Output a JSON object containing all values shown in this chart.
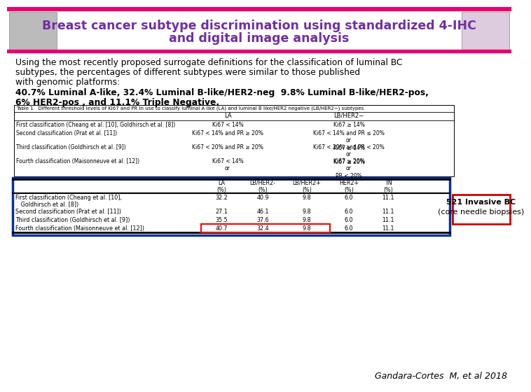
{
  "title_line1": "Breast cancer subtype discrimination using standardized 4-IHC",
  "title_line2": "and digital image analysis",
  "title_color": "#7030A0",
  "header_bar_color": "#E8006C",
  "body_text_lines": [
    "Using the most recently proposed surrogate definitions for the classification of luminal BC",
    "subtypes, the percentages of different subtypes were similar to those published",
    "with genomic platforms:"
  ],
  "bold_text1": "40.7% Luminal A-like, 32.4% Luminal B-like/HER2-neg  9.8% Luminal B-like/HER2-pos,",
  "bold_text2": "6% HER2-pos , and 11.1% Triple Negative.",
  "table1_title": "Table 1   Different threshold levels of Ki67 and PR in use to classify luminal A like (LA) and luminal B like/HER2 negative (LB/HER2−) subtypes",
  "table1_rows": [
    [
      "First classification (Cheang et al. [10], Goldhirsch et al. [8])",
      "Ki67 < 14%",
      "Ki67 ≥ 14%"
    ],
    [
      "Second classification (Prat et al. [11])",
      "Ki67 < 14% and PR ≥ 20%",
      "Ki67 < 14% and PR ≤ 20%\nor\nKi67 ≥ 14%"
    ],
    [
      "Third classification (Goldhirsch et al. [9])",
      "Ki67 < 20% and PR ≥ 20%",
      "Ki67 < 20% and PR < 20%\nor\nKi67 ≥ 20%"
    ],
    [
      "Fourth classification (Maisonneuve et al. [12])",
      "Ki67 < 14%\nor",
      "Ki67 ≥ 20%\nor\nPR < 20%"
    ]
  ],
  "table2_rows": [
    [
      "First classification (Cheang et al. [10],\n   Goldhirsch et al. [8])",
      "32.2",
      "40.9",
      "9.8",
      "6.0",
      "11.1"
    ],
    [
      "Second classification (Prat et al. [11])",
      "27.1",
      "46.1",
      "9.8",
      "6.0",
      "11.1"
    ],
    [
      "Third classification (Goldhirsch et al. [9])",
      "35.5",
      "37.6",
      "9.8",
      "6.0",
      "11.1"
    ],
    [
      "Fourth classification (Maisonneuve et al. [12])",
      "40.7",
      "32.4",
      "9.8",
      "6.0",
      "11.1"
    ]
  ],
  "highlight_row": 3,
  "highlight_color": "#FF0000",
  "box_text_line1": "521 Invasive BC",
  "box_text_line2": "(core needle biopsies)",
  "box_border_color": "#CC0000",
  "table2_border_color": "#003399",
  "citation": "Gandara-Cortes  M, et al 2018",
  "bg_color": "#FFFFFF",
  "text_color": "#000000"
}
